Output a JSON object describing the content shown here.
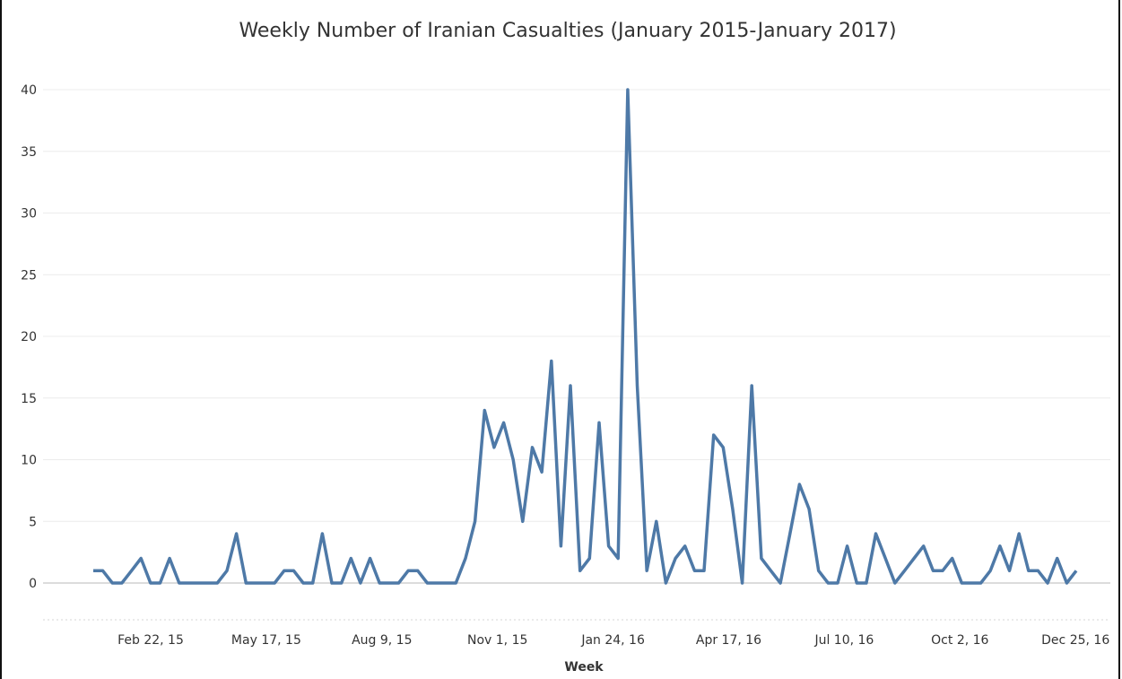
{
  "chart_data": {
    "type": "line",
    "title": "Weekly Number of Iranian Casualties (January 2015-January 2017)",
    "xlabel": "Week",
    "ylabel": "",
    "ylim": [
      -3,
      43
    ],
    "yticks": [
      "0",
      "5",
      "10",
      "15",
      "20",
      "25",
      "30",
      "35",
      "40"
    ],
    "xticks": [
      "Feb 22, 15",
      "May 17, 15",
      "Aug 9, 15",
      "Nov 1, 15",
      "Jan 24, 16",
      "Apr 17, 16",
      "Jul 10, 16",
      "Oct 2, 16",
      "Dec 25, 16"
    ],
    "grid": true,
    "line_color": "#4e79a7",
    "series": [
      {
        "values": [
          1,
          1,
          0,
          0,
          1,
          2,
          0,
          0,
          2,
          0,
          0,
          0,
          0,
          0,
          1,
          4,
          0,
          0,
          0,
          0,
          1,
          1,
          0,
          0,
          4,
          0,
          0,
          2,
          0,
          2,
          0,
          0,
          0,
          1,
          1,
          0,
          0,
          0,
          0,
          2,
          5,
          14,
          11,
          13,
          10,
          5,
          11,
          9,
          18,
          3,
          16,
          1,
          2,
          13,
          3,
          2,
          40,
          16,
          1,
          5,
          0,
          2,
          3,
          1,
          1,
          12,
          11,
          6,
          0,
          16,
          2,
          1,
          0,
          4,
          8,
          6,
          1,
          0,
          0,
          3,
          0,
          0,
          4,
          2,
          0,
          1,
          2,
          3,
          1,
          1,
          2,
          0,
          0,
          0,
          1,
          3,
          1,
          4,
          1,
          1,
          0,
          2,
          0,
          1
        ]
      }
    ]
  }
}
